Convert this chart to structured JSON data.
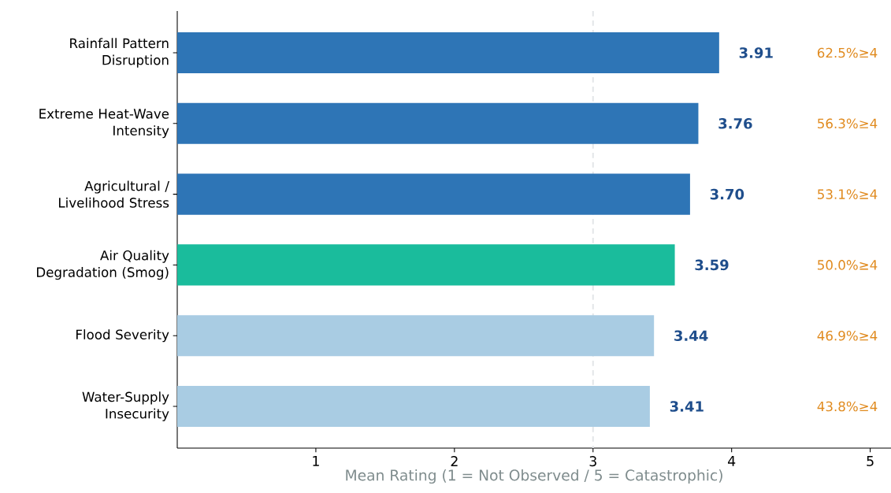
{
  "chart_data": {
    "type": "bar",
    "orientation": "horizontal",
    "xlabel": "Mean Rating  (1 = Not Observed  /  5 = Catastrophic)",
    "categories": [
      "Rainfall Pattern Disruption",
      "Extreme Heat-Wave Intensity",
      "Agricultural / Livelihood Stress",
      "Air Quality Degradation (Smog)",
      "Flood Severity",
      "Water-Supply Insecurity"
    ],
    "values": [
      3.91,
      3.76,
      3.7,
      3.59,
      3.44,
      3.41
    ],
    "colors": [
      "#2e75b6",
      "#2e75b6",
      "#2e75b6",
      "#1abc9c",
      "#a9cce3",
      "#a9cce3"
    ],
    "value_labels": [
      "3.91",
      "3.76",
      "3.70",
      "3.59",
      "3.44",
      "3.41"
    ],
    "xlim": [
      0,
      5.15
    ],
    "xticks": [
      1,
      2,
      3,
      4,
      5
    ],
    "ref_lines": [
      {
        "axis": "x",
        "value": 3,
        "color": "#e3e6e8",
        "line_style": "dashed"
      }
    ],
    "annotations": [
      "62.5%≥4",
      "56.3%≥4",
      "53.1%≥4",
      "50.0%≥4",
      "46.9%≥4",
      "43.8%≥4"
    ],
    "grid": false
  }
}
